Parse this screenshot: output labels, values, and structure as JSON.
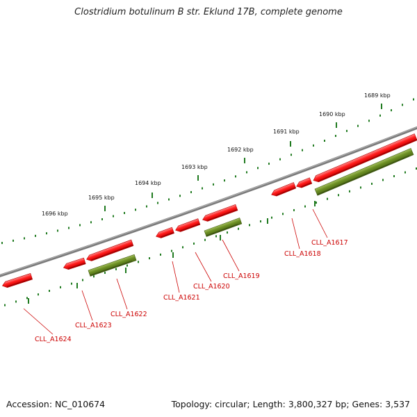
{
  "title": "Clostridium botulinum B str. Eklund 17B, complete genome",
  "footer": {
    "accession": "Accession: NC_010674",
    "summary": "Topology: circular; Length: 3,800,327 bp; Genes: 3,537"
  },
  "colors": {
    "backbone": "#808080",
    "forward_gene": "#ff0000",
    "reverse_gene": "#6b8e23",
    "scale_ticks": "#1f7a1f",
    "gene_label": "#cc0000",
    "scale_label": "#111111"
  },
  "scale_labels": [
    "1696 kbp",
    "1695 kbp",
    "1694 kbp",
    "1693 kbp",
    "1692 kbp",
    "1691 kbp",
    "1690 kbp",
    "1689 kbp"
  ],
  "gene_labels": [
    "CLL_A1624",
    "CLL_A1623",
    "CLL_A1622",
    "CLL_A1621",
    "CLL_A1620",
    "CLL_A1619",
    "CLL_A1618",
    "CLL_A1617"
  ]
}
